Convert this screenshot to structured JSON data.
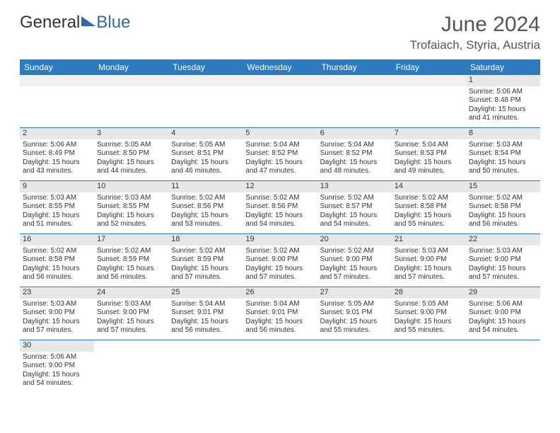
{
  "logo": {
    "text1": "General",
    "text2": "Blue"
  },
  "title": "June 2024",
  "location": "Trofaiach, Styria, Austria",
  "colors": {
    "header_bg": "#2c7bbf",
    "header_text": "#ffffff",
    "daynum_bg": "#e8e8e8",
    "spacer_bg": "#f0f0f0",
    "border": "#2c7bbf",
    "text": "#333333",
    "title_text": "#555555",
    "logo_blue": "#2c6ca8"
  },
  "day_headers": [
    "Sunday",
    "Monday",
    "Tuesday",
    "Wednesday",
    "Thursday",
    "Friday",
    "Saturday"
  ],
  "weeks": [
    [
      null,
      null,
      null,
      null,
      null,
      null,
      {
        "n": "1",
        "sunrise": "5:06 AM",
        "sunset": "8:48 PM",
        "daylight": "15 hours and 41 minutes."
      }
    ],
    [
      {
        "n": "2",
        "sunrise": "5:06 AM",
        "sunset": "8:49 PM",
        "daylight": "15 hours and 43 minutes."
      },
      {
        "n": "3",
        "sunrise": "5:05 AM",
        "sunset": "8:50 PM",
        "daylight": "15 hours and 44 minutes."
      },
      {
        "n": "4",
        "sunrise": "5:05 AM",
        "sunset": "8:51 PM",
        "daylight": "15 hours and 46 minutes."
      },
      {
        "n": "5",
        "sunrise": "5:04 AM",
        "sunset": "8:52 PM",
        "daylight": "15 hours and 47 minutes."
      },
      {
        "n": "6",
        "sunrise": "5:04 AM",
        "sunset": "8:52 PM",
        "daylight": "15 hours and 48 minutes."
      },
      {
        "n": "7",
        "sunrise": "5:04 AM",
        "sunset": "8:53 PM",
        "daylight": "15 hours and 49 minutes."
      },
      {
        "n": "8",
        "sunrise": "5:03 AM",
        "sunset": "8:54 PM",
        "daylight": "15 hours and 50 minutes."
      }
    ],
    [
      {
        "n": "9",
        "sunrise": "5:03 AM",
        "sunset": "8:55 PM",
        "daylight": "15 hours and 51 minutes."
      },
      {
        "n": "10",
        "sunrise": "5:03 AM",
        "sunset": "8:55 PM",
        "daylight": "15 hours and 52 minutes."
      },
      {
        "n": "11",
        "sunrise": "5:02 AM",
        "sunset": "8:56 PM",
        "daylight": "15 hours and 53 minutes."
      },
      {
        "n": "12",
        "sunrise": "5:02 AM",
        "sunset": "8:56 PM",
        "daylight": "15 hours and 54 minutes."
      },
      {
        "n": "13",
        "sunrise": "5:02 AM",
        "sunset": "8:57 PM",
        "daylight": "15 hours and 54 minutes."
      },
      {
        "n": "14",
        "sunrise": "5:02 AM",
        "sunset": "8:58 PM",
        "daylight": "15 hours and 55 minutes."
      },
      {
        "n": "15",
        "sunrise": "5:02 AM",
        "sunset": "8:58 PM",
        "daylight": "15 hours and 56 minutes."
      }
    ],
    [
      {
        "n": "16",
        "sunrise": "5:02 AM",
        "sunset": "8:58 PM",
        "daylight": "15 hours and 56 minutes."
      },
      {
        "n": "17",
        "sunrise": "5:02 AM",
        "sunset": "8:59 PM",
        "daylight": "15 hours and 56 minutes."
      },
      {
        "n": "18",
        "sunrise": "5:02 AM",
        "sunset": "8:59 PM",
        "daylight": "15 hours and 57 minutes."
      },
      {
        "n": "19",
        "sunrise": "5:02 AM",
        "sunset": "9:00 PM",
        "daylight": "15 hours and 57 minutes."
      },
      {
        "n": "20",
        "sunrise": "5:02 AM",
        "sunset": "9:00 PM",
        "daylight": "15 hours and 57 minutes."
      },
      {
        "n": "21",
        "sunrise": "5:03 AM",
        "sunset": "9:00 PM",
        "daylight": "15 hours and 57 minutes."
      },
      {
        "n": "22",
        "sunrise": "5:03 AM",
        "sunset": "9:00 PM",
        "daylight": "15 hours and 57 minutes."
      }
    ],
    [
      {
        "n": "23",
        "sunrise": "5:03 AM",
        "sunset": "9:00 PM",
        "daylight": "15 hours and 57 minutes."
      },
      {
        "n": "24",
        "sunrise": "5:03 AM",
        "sunset": "9:00 PM",
        "daylight": "15 hours and 57 minutes."
      },
      {
        "n": "25",
        "sunrise": "5:04 AM",
        "sunset": "9:01 PM",
        "daylight": "15 hours and 56 minutes."
      },
      {
        "n": "26",
        "sunrise": "5:04 AM",
        "sunset": "9:01 PM",
        "daylight": "15 hours and 56 minutes."
      },
      {
        "n": "27",
        "sunrise": "5:05 AM",
        "sunset": "9:01 PM",
        "daylight": "15 hours and 55 minutes."
      },
      {
        "n": "28",
        "sunrise": "5:05 AM",
        "sunset": "9:00 PM",
        "daylight": "15 hours and 55 minutes."
      },
      {
        "n": "29",
        "sunrise": "5:06 AM",
        "sunset": "9:00 PM",
        "daylight": "15 hours and 54 minutes."
      }
    ],
    [
      {
        "n": "30",
        "sunrise": "5:06 AM",
        "sunset": "9:00 PM",
        "daylight": "15 hours and 54 minutes."
      },
      null,
      null,
      null,
      null,
      null,
      null
    ]
  ],
  "labels": {
    "sunrise": "Sunrise:",
    "sunset": "Sunset:",
    "daylight": "Daylight:"
  }
}
